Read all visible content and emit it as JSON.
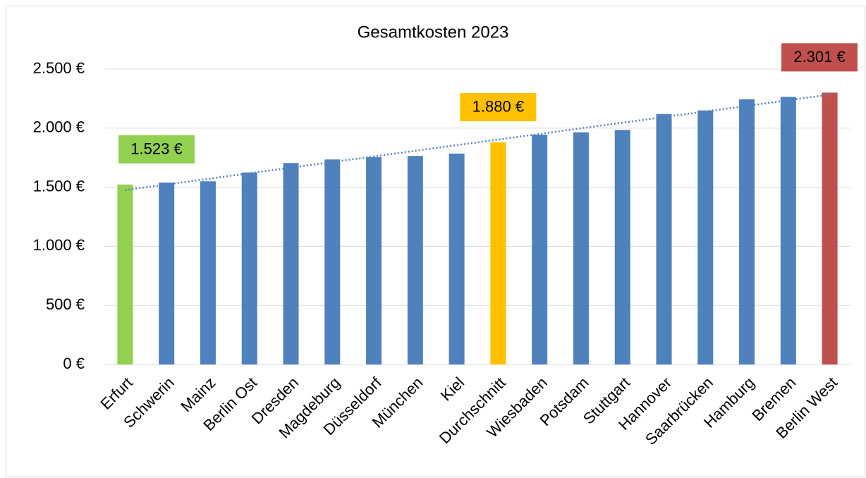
{
  "chart_data": {
    "type": "bar",
    "title": "Gesamtkosten 2023",
    "categories": [
      "Erfurt",
      "Schwerin",
      "Mainz",
      "Berlin Ost",
      "Dresden",
      "Magdeburg",
      "Düsseldorf",
      "München",
      "Kiel",
      "Durchschnitt",
      "Wiesbaden",
      "Potsdam",
      "Stuttgart",
      "Hannover",
      "Saarbrücken",
      "Hamburg",
      "Bremen",
      "Berlin West"
    ],
    "values": [
      1523,
      1540,
      1550,
      1625,
      1705,
      1735,
      1755,
      1765,
      1785,
      1880,
      1945,
      1965,
      1985,
      2120,
      2150,
      2245,
      2265,
      2301
    ],
    "value_labels": [
      "1.523 €",
      null,
      null,
      null,
      null,
      null,
      null,
      null,
      null,
      "1.880 €",
      null,
      null,
      null,
      null,
      null,
      null,
      null,
      "2.301 €"
    ],
    "colors": [
      "#92d050",
      "#4f81bd",
      "#4f81bd",
      "#4f81bd",
      "#4f81bd",
      "#4f81bd",
      "#4f81bd",
      "#4f81bd",
      "#4f81bd",
      "#ffc000",
      "#4f81bd",
      "#4f81bd",
      "#4f81bd",
      "#4f81bd",
      "#4f81bd",
      "#4f81bd",
      "#4f81bd",
      "#c0504d"
    ],
    "ylim": [
      0,
      2500
    ],
    "yticks": [
      {
        "value": 0,
        "label": "0 €"
      },
      {
        "value": 500,
        "label": "500 €"
      },
      {
        "value": 1000,
        "label": "1.000 €"
      },
      {
        "value": 1500,
        "label": "1.500 €"
      },
      {
        "value": 2000,
        "label": "2.000 €"
      },
      {
        "value": 2500,
        "label": "2.500 €"
      }
    ],
    "grid": true,
    "trendline": true,
    "trendline_color": "#4f81bd"
  }
}
